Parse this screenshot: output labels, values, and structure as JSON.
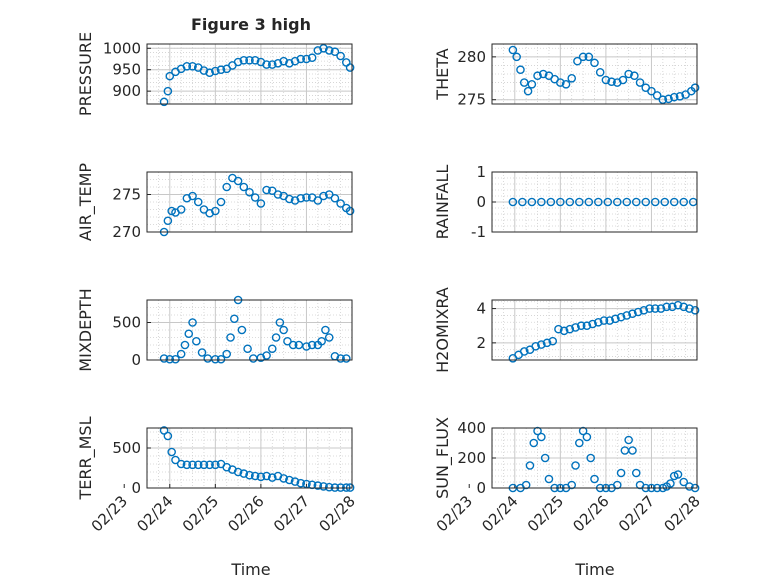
{
  "figure": {
    "title": "Figure 3 high",
    "marker_color": "#0072bd",
    "x_labels": {
      "left": "Time",
      "right": "Time"
    },
    "date_ticks": [
      "02/23",
      "02/24",
      "02/25",
      "02/26",
      "02/27",
      "02/28"
    ]
  },
  "chart_data": [
    {
      "type": "scatter",
      "ylabel": "PRESSURE",
      "xlim": [
        "02/23 12:00",
        "02/28 00:00"
      ],
      "ylim": [
        870,
        1010
      ],
      "yticks": [
        900,
        950,
        1000
      ],
      "xticks": [],
      "grid": true,
      "minor_grid": true,
      "x": [
        "02/23 21:00",
        "02/23 23:00",
        "02/24 00:00",
        "02/24 03:00",
        "02/24 06:00",
        "02/24 09:00",
        "02/24 12:00",
        "02/24 15:00",
        "02/24 18:00",
        "02/24 21:00",
        "02/25 00:00",
        "02/25 03:00",
        "02/25 06:00",
        "02/25 09:00",
        "02/25 12:00",
        "02/25 15:00",
        "02/25 18:00",
        "02/25 21:00",
        "02/26 00:00",
        "02/26 03:00",
        "02/26 06:00",
        "02/26 09:00",
        "02/26 12:00",
        "02/26 15:00",
        "02/26 18:00",
        "02/26 21:00",
        "02/27 00:00",
        "02/27 03:00",
        "02/27 06:00",
        "02/27 09:00",
        "02/27 12:00",
        "02/27 15:00",
        "02/27 18:00",
        "02/27 21:00",
        "02/27 23:00"
      ],
      "y": [
        875,
        900,
        935,
        945,
        952,
        958,
        958,
        955,
        948,
        943,
        947,
        950,
        952,
        960,
        968,
        972,
        972,
        972,
        968,
        962,
        962,
        965,
        970,
        965,
        970,
        975,
        975,
        978,
        995,
        1000,
        995,
        992,
        982,
        967,
        955
      ]
    },
    {
      "type": "scatter",
      "ylabel": "THETA",
      "xlim": [
        "02/23 12:00",
        "02/28 00:00"
      ],
      "ylim": [
        274.5,
        281.5
      ],
      "yticks": [
        275,
        280
      ],
      "xticks": [],
      "grid": true,
      "minor_grid": true,
      "x": [
        "02/23 23:00",
        "02/24 01:00",
        "02/24 03:00",
        "02/24 05:00",
        "02/24 07:00",
        "02/24 09:00",
        "02/24 12:00",
        "02/24 15:00",
        "02/24 18:00",
        "02/24 21:00",
        "02/25 00:00",
        "02/25 03:00",
        "02/25 06:00",
        "02/25 09:00",
        "02/25 12:00",
        "02/25 15:00",
        "02/25 18:00",
        "02/25 21:00",
        "02/26 00:00",
        "02/26 03:00",
        "02/26 06:00",
        "02/26 09:00",
        "02/26 12:00",
        "02/26 15:00",
        "02/26 18:00",
        "02/26 21:00",
        "02/27 00:00",
        "02/27 03:00",
        "02/27 06:00",
        "02/27 09:00",
        "02/27 12:00",
        "02/27 15:00",
        "02/27 18:00",
        "02/27 21:00",
        "02/27 23:00"
      ],
      "y": [
        280.8,
        280,
        278.5,
        277,
        276,
        276.8,
        277.8,
        278,
        277.8,
        277.4,
        277,
        276.8,
        277.5,
        279.5,
        280,
        280,
        279.3,
        278.2,
        277.3,
        277.1,
        277,
        277.3,
        278,
        277.8,
        277,
        276.4,
        276,
        275.5,
        275,
        275.1,
        275.3,
        275.4,
        275.6,
        276,
        276.4
      ]
    },
    {
      "type": "scatter",
      "ylabel": "AIR_TEMP",
      "xlim": [
        "02/23 12:00",
        "02/28 00:00"
      ],
      "ylim": [
        270,
        278
      ],
      "yticks": [
        270,
        275
      ],
      "xticks": [],
      "grid": true,
      "minor_grid": true,
      "x": [
        "02/23 21:00",
        "02/23 23:00",
        "02/24 01:00",
        "02/24 03:00",
        "02/24 06:00",
        "02/24 09:00",
        "02/24 12:00",
        "02/24 15:00",
        "02/24 18:00",
        "02/24 21:00",
        "02/25 00:00",
        "02/25 03:00",
        "02/25 06:00",
        "02/25 09:00",
        "02/25 12:00",
        "02/25 15:00",
        "02/25 18:00",
        "02/25 21:00",
        "02/26 00:00",
        "02/26 03:00",
        "02/26 06:00",
        "02/26 09:00",
        "02/26 12:00",
        "02/26 15:00",
        "02/26 18:00",
        "02/26 21:00",
        "02/27 00:00",
        "02/27 03:00",
        "02/27 06:00",
        "02/27 09:00",
        "02/27 12:00",
        "02/27 15:00",
        "02/27 18:00",
        "02/27 21:00",
        "02/27 23:00"
      ],
      "y": [
        270,
        271.5,
        272.8,
        272.6,
        273,
        274.5,
        274.8,
        274,
        273,
        272.5,
        272.8,
        274,
        276,
        277.2,
        276.8,
        276,
        275.3,
        274.6,
        273.8,
        275.6,
        275.5,
        275,
        274.8,
        274.4,
        274.2,
        274.5,
        274.6,
        274.6,
        274.2,
        274.8,
        275,
        274.5,
        273.8,
        273.2,
        272.8
      ]
    },
    {
      "type": "scatter",
      "ylabel": "RAINFALL",
      "xlim": [
        "02/23 12:00",
        "02/28 00:00"
      ],
      "ylim": [
        -1,
        1
      ],
      "yticks": [
        -1,
        0,
        1
      ],
      "xticks": [],
      "grid": true,
      "minor_grid": true,
      "x": [
        "02/23 23:00",
        "02/24 04:00",
        "02/24 09:00",
        "02/24 14:00",
        "02/24 19:00",
        "02/25 00:00",
        "02/25 05:00",
        "02/25 10:00",
        "02/25 15:00",
        "02/25 20:00",
        "02/26 01:00",
        "02/26 06:00",
        "02/26 11:00",
        "02/26 16:00",
        "02/26 21:00",
        "02/27 02:00",
        "02/27 07:00",
        "02/27 12:00",
        "02/27 17:00",
        "02/27 22:00"
      ],
      "y": [
        0,
        0,
        0,
        0,
        0,
        0,
        0,
        0,
        0,
        0,
        0,
        0,
        0,
        0,
        0,
        0,
        0,
        0,
        0,
        0
      ]
    },
    {
      "type": "scatter",
      "ylabel": "MIXDEPTH",
      "xlim": [
        "02/23 12:00",
        "02/28 00:00"
      ],
      "ylim": [
        0,
        800
      ],
      "yticks": [
        0,
        500
      ],
      "xticks": [],
      "grid": true,
      "minor_grid": true,
      "x": [
        "02/23 21:00",
        "02/24 00:00",
        "02/24 03:00",
        "02/24 06:00",
        "02/24 08:00",
        "02/24 10:00",
        "02/24 12:00",
        "02/24 14:00",
        "02/24 17:00",
        "02/24 20:00",
        "02/25 00:00",
        "02/25 03:00",
        "02/25 06:00",
        "02/25 08:00",
        "02/25 10:00",
        "02/25 12:00",
        "02/25 14:00",
        "02/25 17:00",
        "02/25 20:00",
        "02/26 00:00",
        "02/26 03:00",
        "02/26 06:00",
        "02/26 08:00",
        "02/26 10:00",
        "02/26 12:00",
        "02/26 14:00",
        "02/26 17:00",
        "02/26 20:00",
        "02/27 00:00",
        "02/27 03:00",
        "02/27 06:00",
        "02/27 08:00",
        "02/27 10:00",
        "02/27 12:00",
        "02/27 15:00",
        "02/27 18:00",
        "02/27 21:00"
      ],
      "y": [
        20,
        10,
        10,
        80,
        200,
        350,
        500,
        250,
        100,
        20,
        10,
        10,
        80,
        300,
        550,
        800,
        400,
        150,
        20,
        30,
        60,
        150,
        300,
        500,
        400,
        250,
        200,
        200,
        180,
        200,
        200,
        250,
        400,
        300,
        50,
        20,
        20
      ]
    },
    {
      "type": "scatter",
      "ylabel": "H2OMIXRA",
      "xlim": [
        "02/23 12:00",
        "02/28 00:00"
      ],
      "ylim": [
        1,
        4.5
      ],
      "yticks": [
        2,
        4
      ],
      "xticks": [],
      "grid": true,
      "minor_grid": true,
      "x": [
        "02/23 23:00",
        "02/24 02:00",
        "02/24 05:00",
        "02/24 08:00",
        "02/24 11:00",
        "02/24 14:00",
        "02/24 17:00",
        "02/24 20:00",
        "02/24 23:00",
        "02/25 02:00",
        "02/25 05:00",
        "02/25 08:00",
        "02/25 11:00",
        "02/25 14:00",
        "02/25 17:00",
        "02/25 20:00",
        "02/25 23:00",
        "02/26 02:00",
        "02/26 05:00",
        "02/26 08:00",
        "02/26 11:00",
        "02/26 14:00",
        "02/26 17:00",
        "02/26 20:00",
        "02/26 23:00",
        "02/27 02:00",
        "02/27 05:00",
        "02/27 08:00",
        "02/27 11:00",
        "02/27 14:00",
        "02/27 17:00",
        "02/27 20:00",
        "02/27 23:00"
      ],
      "y": [
        1.1,
        1.3,
        1.5,
        1.6,
        1.8,
        1.9,
        2,
        2.1,
        2.8,
        2.7,
        2.8,
        2.9,
        3,
        3,
        3.1,
        3.2,
        3.3,
        3.3,
        3.4,
        3.5,
        3.6,
        3.7,
        3.8,
        3.9,
        4,
        4,
        4,
        4.1,
        4.1,
        4.2,
        4.1,
        4,
        3.9
      ]
    },
    {
      "type": "scatter",
      "ylabel": "TERR_MSL",
      "xlim": [
        "02/23 12:00",
        "02/28 00:00"
      ],
      "ylim": [
        0,
        750
      ],
      "yticks": [
        0,
        500
      ],
      "xticks": [
        "02/23",
        "02/24",
        "02/25",
        "02/26",
        "02/27",
        "02/28"
      ],
      "grid": true,
      "minor_grid": true,
      "x": [
        "02/23 21:00",
        "02/23 23:00",
        "02/24 01:00",
        "02/24 03:00",
        "02/24 06:00",
        "02/24 09:00",
        "02/24 12:00",
        "02/24 15:00",
        "02/24 18:00",
        "02/24 21:00",
        "02/25 00:00",
        "02/25 03:00",
        "02/25 06:00",
        "02/25 09:00",
        "02/25 12:00",
        "02/25 15:00",
        "02/25 18:00",
        "02/25 21:00",
        "02/26 00:00",
        "02/26 03:00",
        "02/26 06:00",
        "02/26 09:00",
        "02/26 12:00",
        "02/26 15:00",
        "02/26 18:00",
        "02/26 21:00",
        "02/27 00:00",
        "02/27 03:00",
        "02/27 06:00",
        "02/27 09:00",
        "02/27 12:00",
        "02/27 15:00",
        "02/27 18:00",
        "02/27 21:00",
        "02/27 23:00"
      ],
      "y": [
        720,
        650,
        450,
        350,
        300,
        290,
        290,
        290,
        290,
        290,
        290,
        300,
        260,
        230,
        200,
        180,
        160,
        150,
        140,
        150,
        130,
        150,
        120,
        100,
        80,
        60,
        50,
        40,
        30,
        20,
        10,
        5,
        5,
        5,
        5
      ]
    },
    {
      "type": "scatter",
      "ylabel": "SUN_FLUX",
      "xlim": [
        "02/23 12:00",
        "02/28 00:00"
      ],
      "ylim": [
        0,
        400
      ],
      "yticks": [
        0,
        200,
        400
      ],
      "xticks": [
        "02/23",
        "02/24",
        "02/25",
        "02/26",
        "02/27",
        "02/28"
      ],
      "grid": true,
      "minor_grid": true,
      "x": [
        "02/23 23:00",
        "02/24 03:00",
        "02/24 06:00",
        "02/24 08:00",
        "02/24 10:00",
        "02/24 12:00",
        "02/24 14:00",
        "02/24 16:00",
        "02/24 18:00",
        "02/24 21:00",
        "02/25 00:00",
        "02/25 03:00",
        "02/25 06:00",
        "02/25 08:00",
        "02/25 10:00",
        "02/25 12:00",
        "02/25 14:00",
        "02/25 16:00",
        "02/25 18:00",
        "02/25 21:00",
        "02/26 00:00",
        "02/26 03:00",
        "02/26 06:00",
        "02/26 08:00",
        "02/26 10:00",
        "02/26 12:00",
        "02/26 14:00",
        "02/26 16:00",
        "02/26 18:00",
        "02/26 21:00",
        "02/27 00:00",
        "02/27 03:00",
        "02/27 06:00",
        "02/27 08:00",
        "02/27 10:00",
        "02/27 12:00",
        "02/27 14:00",
        "02/27 17:00",
        "02/27 20:00",
        "02/27 23:00"
      ],
      "y": [
        0,
        0,
        20,
        150,
        300,
        380,
        340,
        200,
        60,
        0,
        0,
        0,
        20,
        150,
        300,
        380,
        340,
        200,
        60,
        0,
        0,
        0,
        20,
        100,
        250,
        320,
        250,
        100,
        20,
        0,
        0,
        0,
        0,
        10,
        30,
        80,
        90,
        40,
        10,
        0
      ]
    }
  ]
}
